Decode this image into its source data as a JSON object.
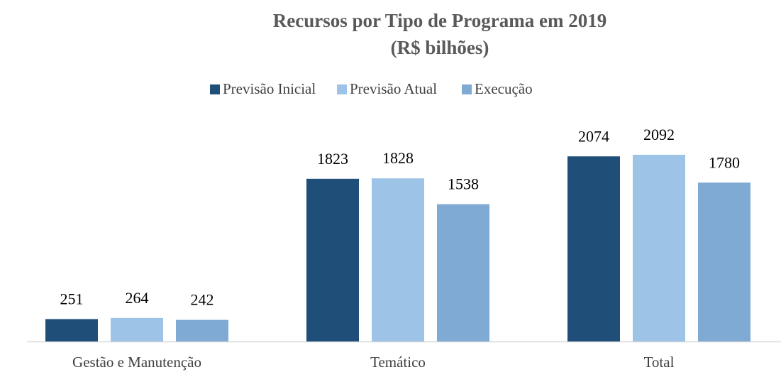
{
  "chart_data": {
    "type": "bar",
    "title": [
      "Recursos por Tipo de Programa em 2019",
      "(R$ bilhões)"
    ],
    "categories": [
      "Gestão e Manutenção",
      "Temático",
      "Total"
    ],
    "series": [
      {
        "name": "Previsão Inicial",
        "color": "#1f4e79",
        "values": [
          251,
          1823,
          2074
        ]
      },
      {
        "name": "Previsão Atual",
        "color": "#9dc3e6",
        "values": [
          264,
          1828,
          2092
        ]
      },
      {
        "name": "Execução",
        "color": "#7faad4",
        "values": [
          242,
          1538,
          1780
        ]
      }
    ],
    "legend": "top"
  }
}
